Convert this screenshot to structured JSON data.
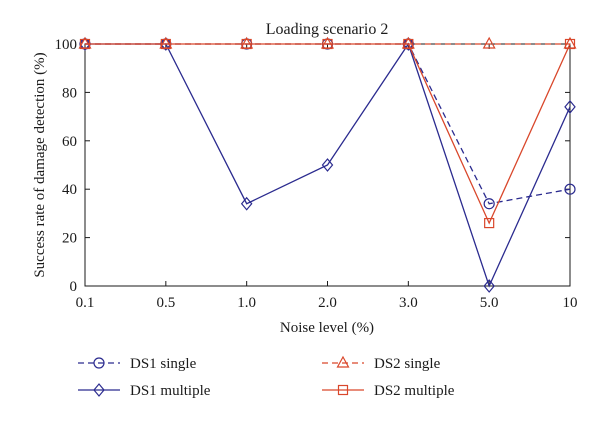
{
  "chart_data": {
    "type": "line",
    "title": "Loading scenario 2",
    "xlabel": "Noise level (%)",
    "ylabel": "Success rate of damage detection (%)",
    "categories": [
      "0.1",
      "0.5",
      "1.0",
      "2.0",
      "3.0",
      "5.0",
      "10"
    ],
    "ylim": [
      0,
      100
    ],
    "yticks": [
      "0",
      "20",
      "40",
      "60",
      "80",
      "100"
    ],
    "grid": false,
    "legend_position": "bottom",
    "series": [
      {
        "name": "DS1 single",
        "values": [
          100,
          100,
          100,
          100,
          100,
          34,
          40
        ],
        "color": "#2b2b8f",
        "dash": true,
        "marker": "circle"
      },
      {
        "name": "DS1 multiple",
        "values": [
          100,
          100,
          34,
          50,
          100,
          0,
          74
        ],
        "color": "#2b2b8f",
        "dash": false,
        "marker": "diamond"
      },
      {
        "name": "DS2 single",
        "values": [
          100,
          100,
          100,
          100,
          100,
          100,
          100
        ],
        "color": "#d9472b",
        "dash": true,
        "marker": "triangle"
      },
      {
        "name": "DS2 multiple",
        "values": [
          100,
          100,
          100,
          100,
          100,
          26,
          100
        ],
        "color": "#d9472b",
        "dash": false,
        "marker": "square"
      }
    ]
  }
}
